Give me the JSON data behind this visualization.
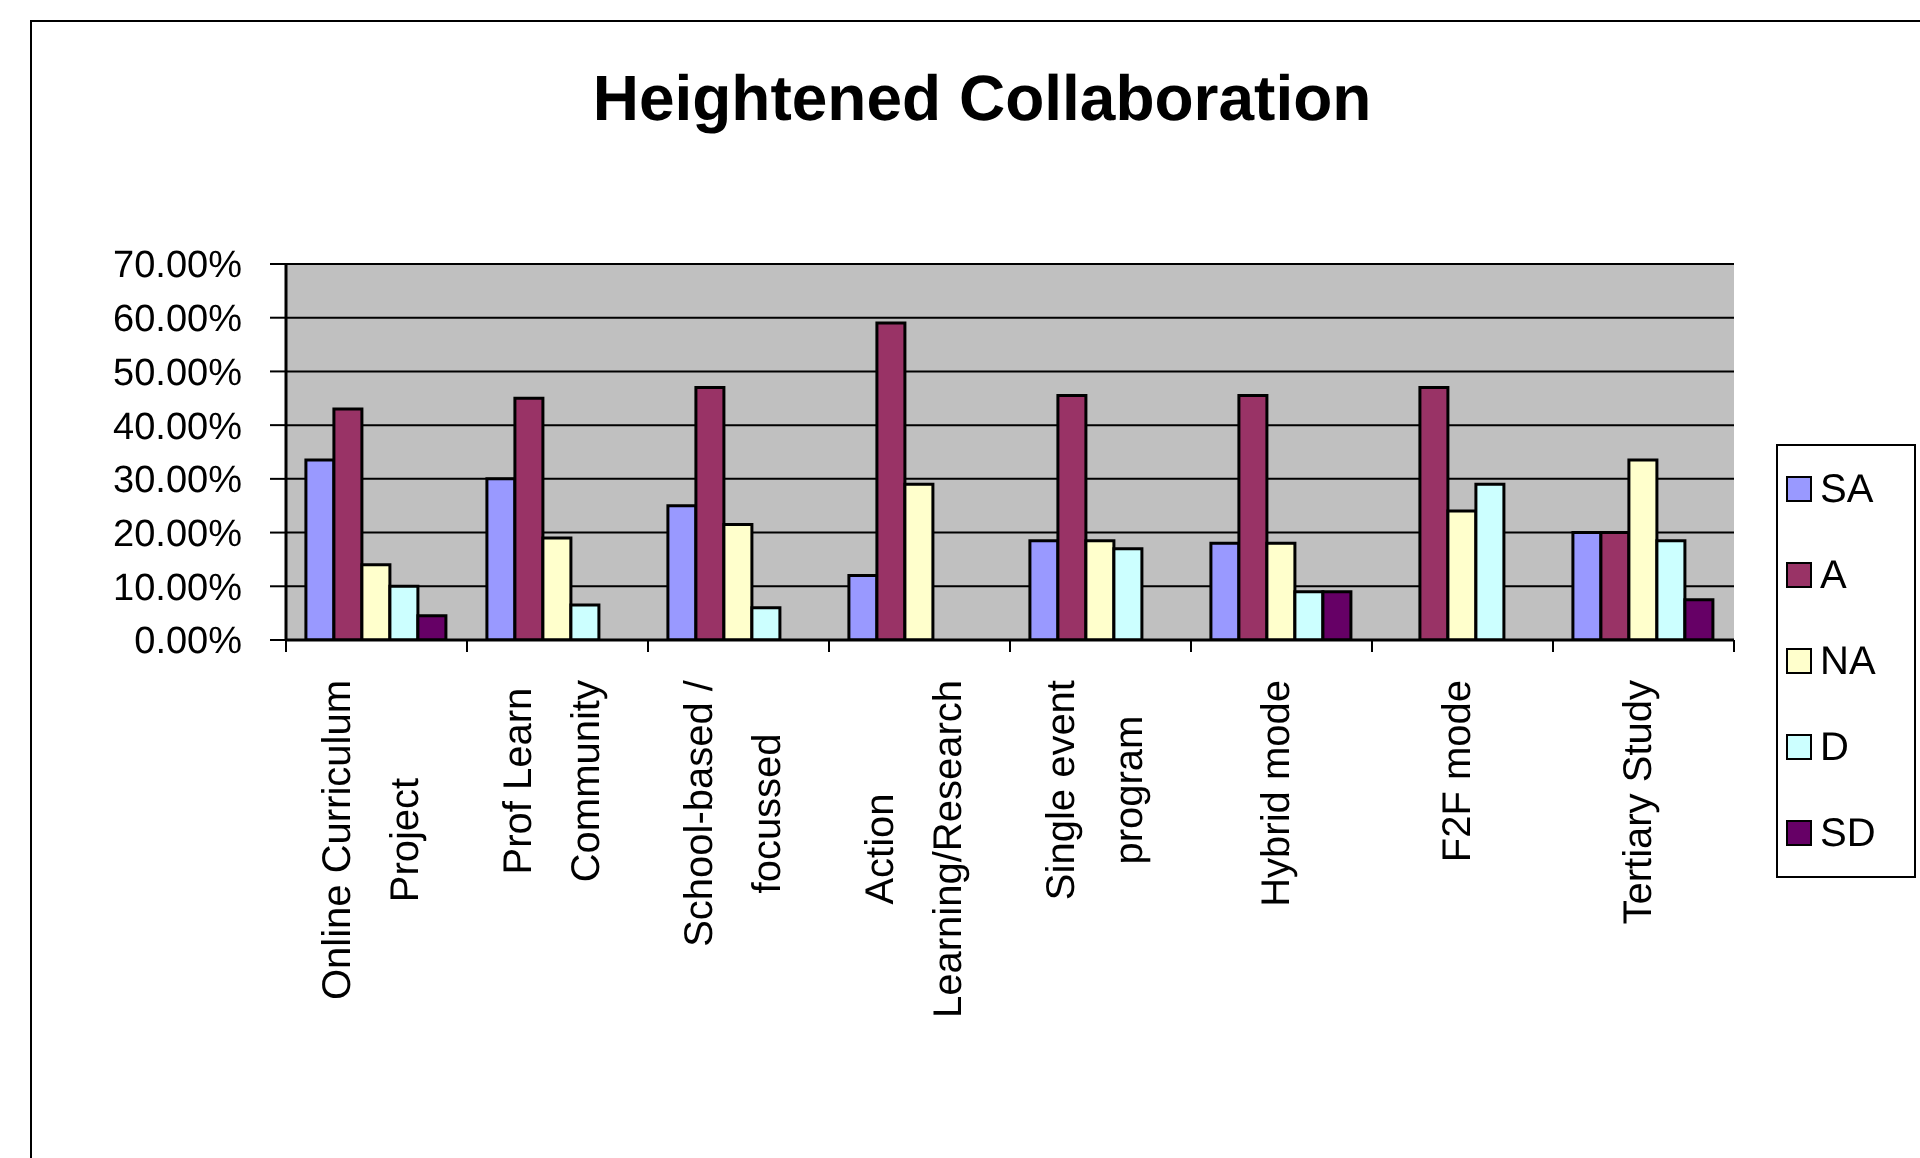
{
  "chart_data": {
    "type": "bar",
    "title": "Heightened Collaboration",
    "categories": [
      "Online Curriculum Project",
      "Prof Learn Community",
      "School-based / focussed",
      "Action Learning/Research",
      "Single event program",
      "Hybrid mode",
      "F2F mode",
      "Tertiary Study"
    ],
    "series": [
      {
        "name": "SA",
        "color": "#9999ff",
        "values": [
          33.5,
          30,
          25,
          12,
          18.5,
          18,
          null,
          20
        ]
      },
      {
        "name": "A",
        "color": "#993366",
        "values": [
          43,
          45,
          47,
          59,
          45.5,
          45.5,
          47,
          20
        ]
      },
      {
        "name": "NA",
        "color": "#ffffcc",
        "values": [
          14,
          19,
          21.5,
          29,
          18.5,
          18,
          24,
          33.5
        ]
      },
      {
        "name": "D",
        "color": "#ccffff",
        "values": [
          10,
          6.5,
          6,
          null,
          17,
          9,
          29,
          18.5
        ]
      },
      {
        "name": "SD",
        "color": "#660066",
        "values": [
          4.5,
          null,
          null,
          null,
          null,
          9,
          null,
          7.5
        ]
      }
    ],
    "ylim": [
      0,
      70
    ],
    "yticks": [
      {
        "value": 0,
        "label": "0.00%"
      },
      {
        "value": 10,
        "label": "10.00%"
      },
      {
        "value": 20,
        "label": "20.00%"
      },
      {
        "value": 30,
        "label": "30.00%"
      },
      {
        "value": 40,
        "label": "40.00%"
      },
      {
        "value": 50,
        "label": "50.00%"
      },
      {
        "value": 60,
        "label": "60.00%"
      },
      {
        "value": 70,
        "label": "70.00%"
      }
    ],
    "grid": "y",
    "legend": "right"
  }
}
